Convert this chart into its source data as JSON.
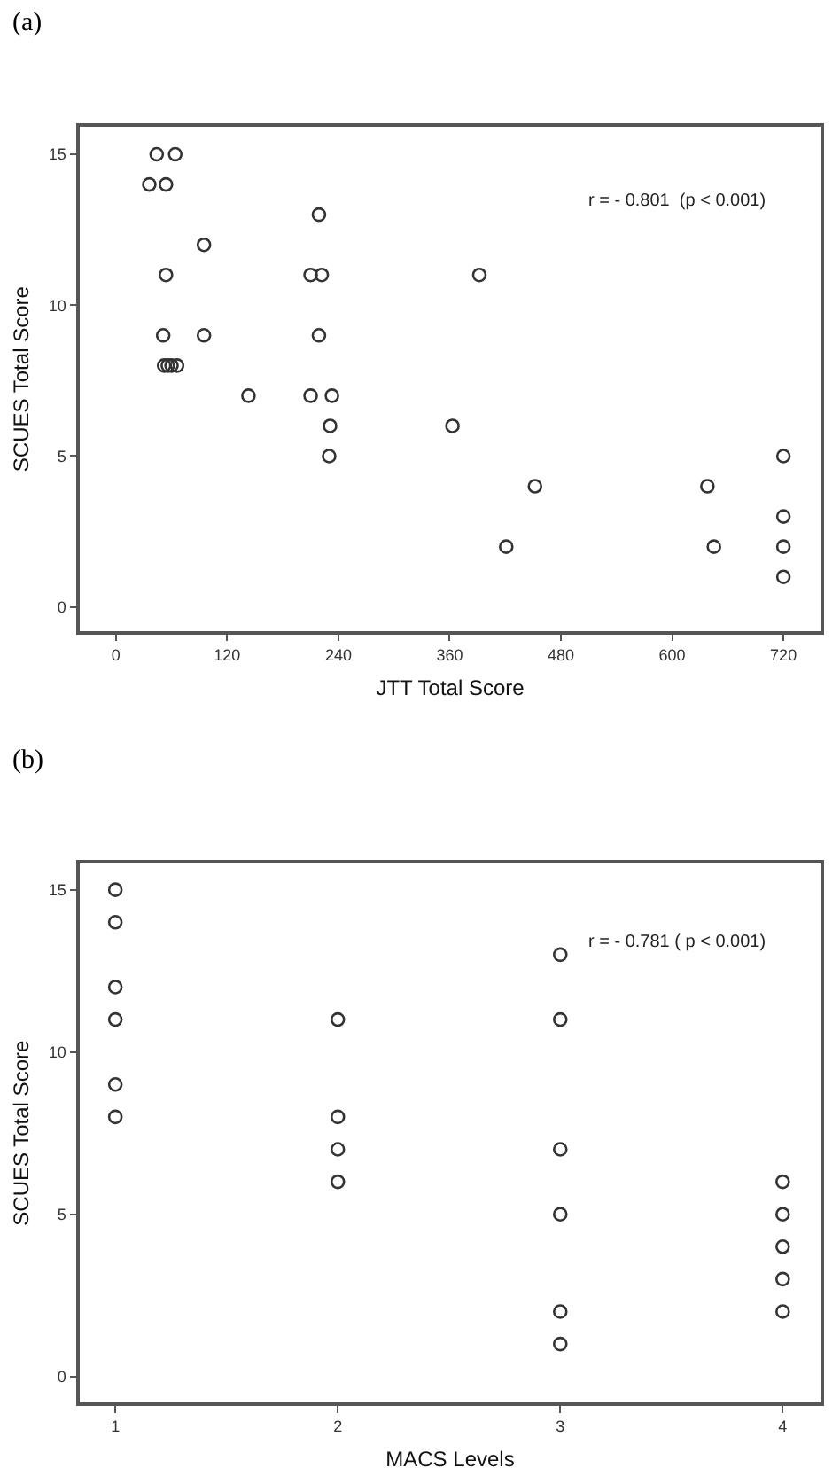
{
  "chart_data": [
    {
      "type": "scatter",
      "title": "(a)",
      "xlabel": "JTT Total Score",
      "ylabel": "SCUES Total Score",
      "annotations": [
        "r = - 0.801  (p < 0.001)"
      ],
      "x": [
        44,
        64,
        36,
        54,
        219,
        95,
        54,
        210,
        222,
        392,
        51,
        95,
        219,
        52,
        56,
        60,
        66,
        143,
        210,
        233,
        231,
        363,
        230,
        720,
        452,
        638,
        720,
        421,
        645,
        720,
        720
      ],
      "values": [
        15,
        15,
        14,
        14,
        13,
        12,
        11,
        11,
        11,
        11,
        9,
        9,
        9,
        8,
        8,
        8,
        8,
        7,
        7,
        7,
        6,
        6,
        5,
        5,
        4,
        4,
        3,
        2,
        2,
        2,
        1
      ],
      "color": "#333333",
      "marker": "circle",
      "xlim": [
        -39,
        760
      ],
      "xticks": [
        0,
        120,
        240,
        360,
        480,
        600,
        720
      ],
      "ylim": [
        -0.8,
        15.9
      ],
      "yticks": [
        0,
        5,
        10,
        15
      ]
    },
    {
      "type": "scatter",
      "title": "(b)",
      "xlabel": "MACS Levels",
      "ylabel": "SCUES Total Score",
      "annotations": [
        "r = - 0.781 ( p < 0.001)"
      ],
      "x": [
        1,
        1,
        1,
        1,
        1,
        1,
        2,
        2,
        2,
        2,
        3,
        3,
        3,
        3,
        3,
        3,
        4,
        4,
        4,
        4,
        4
      ],
      "values": [
        15,
        14,
        12,
        11,
        9,
        8,
        11,
        8,
        7,
        6,
        13,
        11,
        7,
        5,
        2,
        1,
        6,
        5,
        4,
        3,
        2
      ],
      "color": "#333333",
      "marker": "circle",
      "xlim": [
        0.84,
        4.17
      ],
      "xticks": [
        1,
        2,
        3,
        4
      ],
      "ylim": [
        -0.8,
        15.8
      ],
      "yticks": [
        0,
        5,
        10,
        15
      ]
    }
  ]
}
